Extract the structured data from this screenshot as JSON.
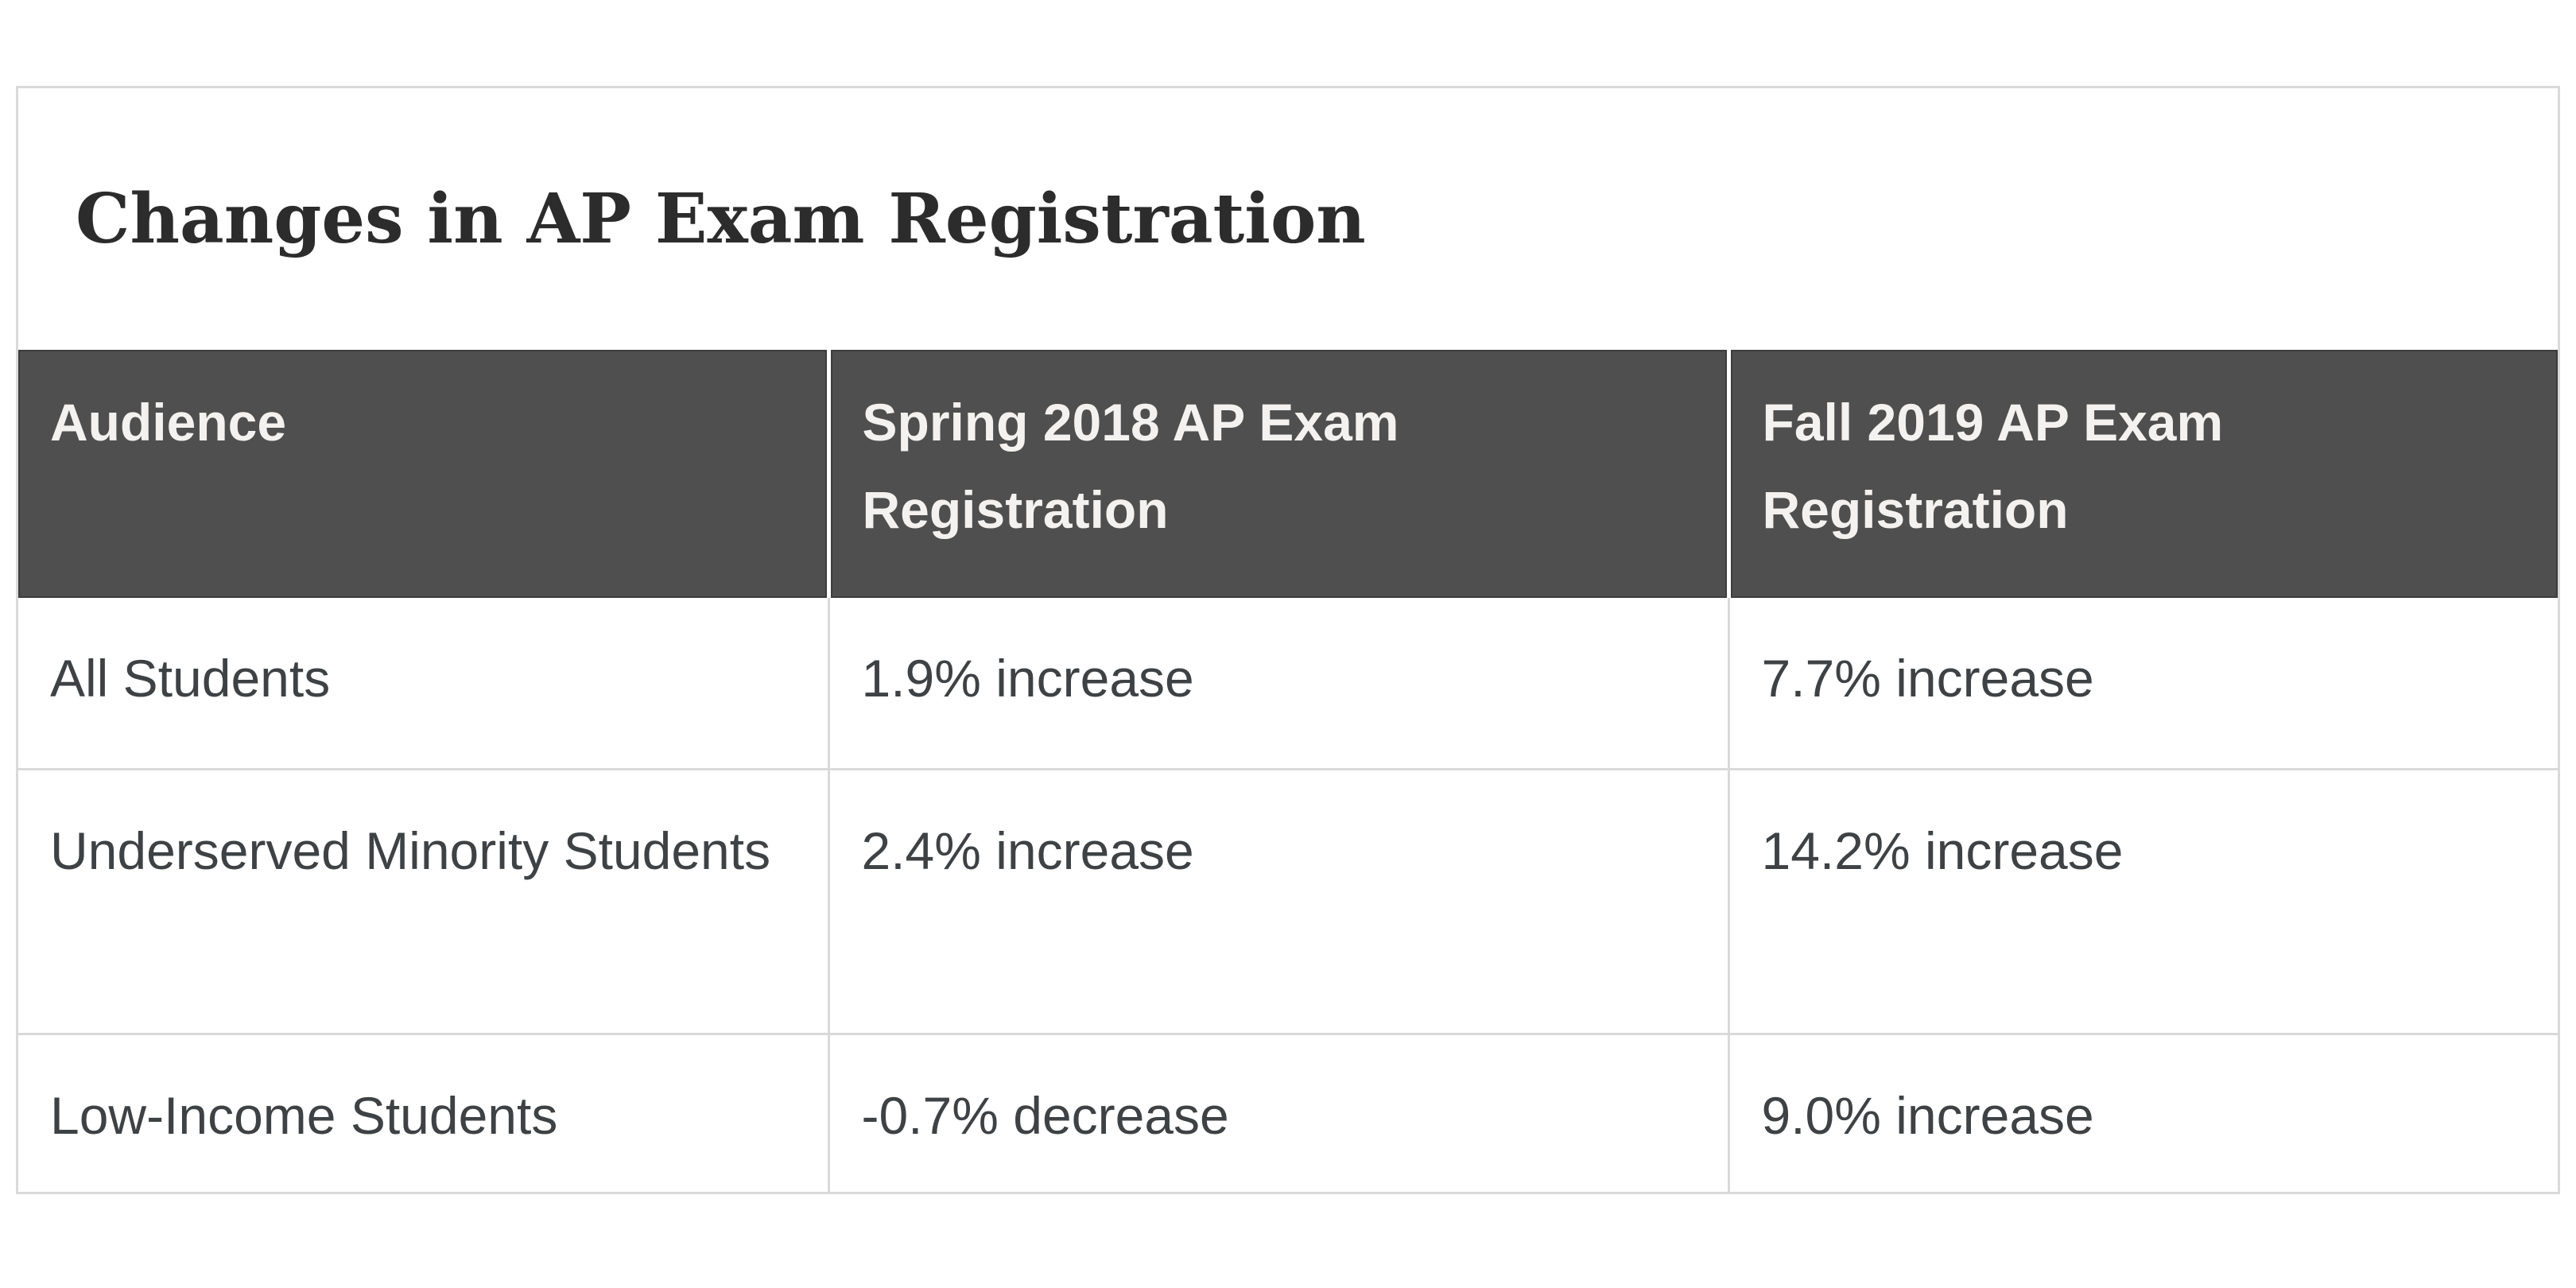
{
  "page": {
    "background": "#ffffff"
  },
  "card": {
    "background": "#ffffff",
    "border_color": "#d9d9d9"
  },
  "title": {
    "text": "Changes in AP Exam Registration",
    "color": "#2c2c2c"
  },
  "table": {
    "header_bg": "#4f4f4f",
    "header_text_color": "#f3f2f0",
    "body_text_color": "#3e4245",
    "divider_color": "#d9d9d9",
    "columns": [
      "Audience",
      "Spring 2018 AP Exam Registration",
      "Fall 2019 AP Exam Registration"
    ],
    "rows": [
      {
        "cells": [
          "All Students",
          "1.9% increase",
          "7.7% increase"
        ]
      },
      {
        "cells": [
          "Underserved Minority Students",
          "2.4% increase",
          "14.2% increase"
        ]
      },
      {
        "cells": [
          "Low-Income Students",
          "-0.7% decrease",
          "9.0% increase"
        ]
      }
    ]
  },
  "chart_data": {
    "type": "table",
    "title": "Changes in AP Exam Registration",
    "columns": [
      "Audience",
      "Spring 2018 AP Exam Registration",
      "Fall 2019 AP Exam Registration"
    ],
    "rows": [
      [
        "All Students",
        "1.9% increase",
        "7.7% increase"
      ],
      [
        "Underserved Minority Students",
        "2.4% increase",
        "14.2% increase"
      ],
      [
        "Low-Income Students",
        "-0.7% decrease",
        "9.0% increase"
      ]
    ],
    "series": [
      {
        "name": "Spring 2018 AP Exam Registration (% change)",
        "values": [
          1.9,
          2.4,
          -0.7
        ]
      },
      {
        "name": "Fall 2019 AP Exam Registration (% change)",
        "values": [
          7.7,
          14.2,
          9.0
        ]
      }
    ],
    "categories": [
      "All Students",
      "Underserved Minority Students",
      "Low-Income Students"
    ]
  }
}
